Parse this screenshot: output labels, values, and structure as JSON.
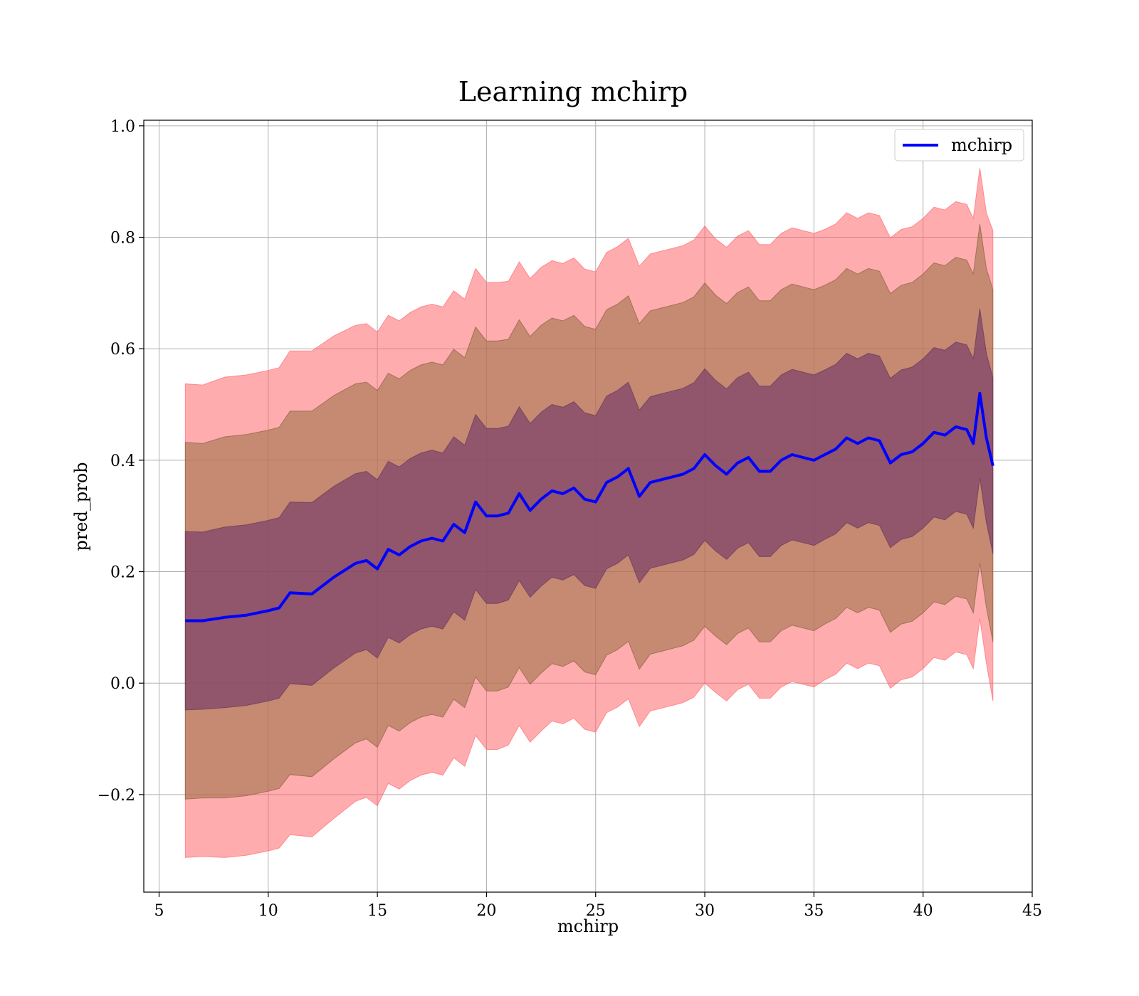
{
  "chart_data": {
    "type": "line",
    "title": "Learning mchirp",
    "xlabel": "mchirp",
    "ylabel": "pred_prob",
    "xlim": [
      4.3,
      45
    ],
    "ylim": [
      -0.375,
      1.01
    ],
    "xticks": [
      5,
      10,
      15,
      20,
      25,
      30,
      35,
      40,
      45
    ],
    "xtick_labels": [
      "5",
      "10",
      "15",
      "20",
      "25",
      "30",
      "35",
      "40",
      "45"
    ],
    "yticks": [
      -0.2,
      0.0,
      0.2,
      0.4,
      0.6,
      0.8,
      1.0
    ],
    "ytick_labels": [
      "−0.2",
      "0.0",
      "0.2",
      "0.4",
      "0.6",
      "0.8",
      "1.0"
    ],
    "grid": true,
    "legend": {
      "position": "top-right",
      "entries": [
        "mchirp"
      ]
    },
    "colors": {
      "line": "#0000ff",
      "band_3sigma": "#ff5a5f",
      "band_2sigma": "#a0724a",
      "band_1sigma": "#7a3f6a"
    },
    "series": [
      {
        "name": "mchirp",
        "x": [
          6.2,
          7.0,
          8.0,
          9.0,
          10.0,
          10.5,
          11.0,
          12.0,
          13.0,
          14.0,
          14.5,
          15.0,
          15.5,
          16.0,
          16.5,
          17.0,
          17.5,
          18.0,
          18.5,
          19.0,
          19.5,
          20.0,
          20.5,
          21.0,
          21.5,
          22.0,
          22.5,
          23.0,
          23.5,
          24.0,
          24.5,
          25.0,
          25.5,
          26.0,
          26.5,
          27.0,
          27.5,
          28.0,
          28.5,
          29.0,
          29.5,
          30.0,
          30.5,
          31.0,
          31.5,
          32.0,
          32.5,
          33.0,
          33.5,
          34.0,
          34.5,
          35.0,
          35.5,
          36.0,
          36.5,
          37.0,
          37.5,
          38.0,
          38.5,
          39.0,
          39.5,
          40.0,
          40.5,
          41.0,
          41.5,
          42.0,
          42.3,
          42.6,
          42.9,
          43.2
        ],
        "y": [
          0.112,
          0.112,
          0.118,
          0.122,
          0.13,
          0.135,
          0.162,
          0.16,
          0.19,
          0.215,
          0.22,
          0.205,
          0.24,
          0.23,
          0.245,
          0.255,
          0.26,
          0.255,
          0.285,
          0.27,
          0.325,
          0.3,
          0.3,
          0.305,
          0.34,
          0.31,
          0.33,
          0.345,
          0.34,
          0.35,
          0.33,
          0.325,
          0.36,
          0.37,
          0.385,
          0.335,
          0.36,
          0.365,
          0.37,
          0.375,
          0.385,
          0.41,
          0.39,
          0.375,
          0.395,
          0.405,
          0.38,
          0.38,
          0.4,
          0.41,
          0.405,
          0.4,
          0.41,
          0.42,
          0.44,
          0.43,
          0.44,
          0.435,
          0.395,
          0.41,
          0.415,
          0.43,
          0.45,
          0.445,
          0.46,
          0.455,
          0.43,
          0.52,
          0.44,
          0.39
        ],
        "lower_1sigma": [
          -0.048,
          -0.047,
          -0.044,
          -0.04,
          -0.032,
          -0.027,
          -0.001,
          -0.004,
          0.027,
          0.054,
          0.06,
          0.045,
          0.082,
          0.072,
          0.087,
          0.097,
          0.102,
          0.097,
          0.128,
          0.113,
          0.168,
          0.143,
          0.143,
          0.149,
          0.184,
          0.154,
          0.174,
          0.19,
          0.185,
          0.195,
          0.175,
          0.17,
          0.205,
          0.215,
          0.23,
          0.18,
          0.206,
          0.211,
          0.216,
          0.221,
          0.231,
          0.256,
          0.237,
          0.222,
          0.242,
          0.252,
          0.227,
          0.227,
          0.247,
          0.257,
          0.252,
          0.247,
          0.258,
          0.268,
          0.288,
          0.278,
          0.288,
          0.283,
          0.243,
          0.258,
          0.263,
          0.278,
          0.298,
          0.293,
          0.308,
          0.303,
          0.278,
          0.368,
          0.288,
          0.232
        ],
        "upper_1sigma": [
          0.272,
          0.271,
          0.28,
          0.284,
          0.292,
          0.297,
          0.325,
          0.324,
          0.353,
          0.376,
          0.38,
          0.365,
          0.398,
          0.388,
          0.403,
          0.413,
          0.418,
          0.413,
          0.442,
          0.427,
          0.482,
          0.457,
          0.457,
          0.461,
          0.496,
          0.466,
          0.486,
          0.5,
          0.495,
          0.505,
          0.485,
          0.48,
          0.515,
          0.525,
          0.54,
          0.49,
          0.514,
          0.519,
          0.524,
          0.529,
          0.539,
          0.564,
          0.543,
          0.528,
          0.548,
          0.558,
          0.533,
          0.533,
          0.553,
          0.563,
          0.558,
          0.553,
          0.562,
          0.572,
          0.592,
          0.582,
          0.592,
          0.587,
          0.547,
          0.562,
          0.567,
          0.582,
          0.602,
          0.597,
          0.612,
          0.607,
          0.582,
          0.672,
          0.592,
          0.548
        ],
        "lower_2sigma": [
          -0.208,
          -0.206,
          -0.206,
          -0.202,
          -0.194,
          -0.189,
          -0.164,
          -0.168,
          -0.136,
          -0.107,
          -0.1,
          -0.115,
          -0.076,
          -0.086,
          -0.071,
          -0.061,
          -0.056,
          -0.061,
          -0.029,
          -0.044,
          0.011,
          -0.014,
          -0.014,
          -0.007,
          0.028,
          -0.002,
          0.018,
          0.035,
          0.03,
          0.04,
          0.02,
          0.015,
          0.05,
          0.06,
          0.075,
          0.025,
          0.052,
          0.057,
          0.062,
          0.067,
          0.077,
          0.102,
          0.084,
          0.069,
          0.089,
          0.099,
          0.074,
          0.074,
          0.094,
          0.104,
          0.099,
          0.094,
          0.106,
          0.116,
          0.136,
          0.126,
          0.136,
          0.131,
          0.091,
          0.106,
          0.111,
          0.126,
          0.146,
          0.141,
          0.156,
          0.151,
          0.126,
          0.216,
          0.136,
          0.074
        ],
        "upper_2sigma": [
          0.432,
          0.43,
          0.442,
          0.446,
          0.454,
          0.459,
          0.488,
          0.488,
          0.516,
          0.537,
          0.54,
          0.525,
          0.556,
          0.546,
          0.561,
          0.571,
          0.576,
          0.571,
          0.599,
          0.584,
          0.639,
          0.614,
          0.614,
          0.617,
          0.652,
          0.622,
          0.642,
          0.655,
          0.65,
          0.66,
          0.64,
          0.635,
          0.67,
          0.68,
          0.695,
          0.645,
          0.668,
          0.673,
          0.678,
          0.683,
          0.693,
          0.718,
          0.696,
          0.681,
          0.701,
          0.711,
          0.686,
          0.686,
          0.706,
          0.716,
          0.711,
          0.706,
          0.714,
          0.724,
          0.744,
          0.734,
          0.744,
          0.739,
          0.699,
          0.714,
          0.719,
          0.734,
          0.754,
          0.749,
          0.764,
          0.759,
          0.734,
          0.824,
          0.744,
          0.706
        ],
        "lower_3sigma": [
          -0.313,
          -0.311,
          -0.313,
          -0.309,
          -0.301,
          -0.296,
          -0.272,
          -0.276,
          -0.243,
          -0.212,
          -0.205,
          -0.22,
          -0.18,
          -0.19,
          -0.175,
          -0.165,
          -0.16,
          -0.165,
          -0.134,
          -0.149,
          -0.094,
          -0.119,
          -0.119,
          -0.111,
          -0.076,
          -0.106,
          -0.086,
          -0.068,
          -0.073,
          -0.063,
          -0.083,
          -0.088,
          -0.053,
          -0.043,
          -0.028,
          -0.078,
          -0.05,
          -0.045,
          -0.04,
          -0.035,
          -0.025,
          0.0,
          -0.017,
          -0.032,
          -0.012,
          -0.002,
          -0.027,
          -0.027,
          -0.007,
          0.003,
          -0.002,
          -0.007,
          0.006,
          0.016,
          0.036,
          0.026,
          0.036,
          0.031,
          -0.009,
          0.006,
          0.011,
          0.026,
          0.046,
          0.041,
          0.056,
          0.051,
          0.026,
          0.116,
          0.036,
          -0.032
        ],
        "upper_3sigma": [
          0.537,
          0.535,
          0.549,
          0.553,
          0.561,
          0.566,
          0.596,
          0.596,
          0.623,
          0.642,
          0.645,
          0.63,
          0.66,
          0.65,
          0.665,
          0.675,
          0.68,
          0.675,
          0.704,
          0.689,
          0.744,
          0.719,
          0.719,
          0.721,
          0.756,
          0.726,
          0.746,
          0.758,
          0.753,
          0.763,
          0.743,
          0.738,
          0.773,
          0.783,
          0.798,
          0.748,
          0.77,
          0.775,
          0.78,
          0.785,
          0.795,
          0.82,
          0.797,
          0.782,
          0.802,
          0.812,
          0.787,
          0.787,
          0.807,
          0.817,
          0.812,
          0.807,
          0.814,
          0.824,
          0.844,
          0.834,
          0.844,
          0.839,
          0.799,
          0.814,
          0.819,
          0.834,
          0.854,
          0.849,
          0.864,
          0.859,
          0.834,
          0.924,
          0.844,
          0.812
        ]
      }
    ]
  }
}
